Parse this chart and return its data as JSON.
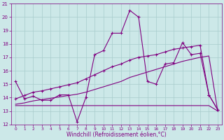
{
  "xlabel": "Windchill (Refroidissement éolien,°C)",
  "x": [
    0,
    1,
    2,
    3,
    4,
    5,
    6,
    7,
    8,
    9,
    10,
    11,
    12,
    13,
    14,
    15,
    16,
    17,
    18,
    19,
    20,
    21,
    22,
    23
  ],
  "line_main": [
    15.2,
    13.9,
    14.1,
    13.8,
    13.8,
    14.2,
    14.2,
    12.2,
    14.0,
    17.2,
    17.5,
    18.8,
    18.8,
    20.5,
    20.0,
    15.2,
    15.0,
    16.5,
    16.6,
    18.1,
    17.2,
    17.3,
    14.2,
    13.1
  ],
  "line_trend_upper": [
    13.9,
    14.15,
    14.4,
    14.5,
    14.65,
    14.8,
    14.95,
    15.1,
    15.4,
    15.7,
    16.0,
    16.3,
    16.5,
    16.8,
    17.0,
    17.1,
    17.2,
    17.4,
    17.6,
    17.7,
    17.8,
    17.9,
    14.2,
    13.1
  ],
  "line_trend_lower": [
    13.5,
    13.6,
    13.75,
    13.85,
    13.95,
    14.05,
    14.15,
    14.25,
    14.4,
    14.6,
    14.8,
    15.0,
    15.2,
    15.5,
    15.7,
    15.9,
    16.1,
    16.3,
    16.5,
    16.7,
    16.85,
    17.0,
    17.1,
    13.0
  ],
  "line_flat": [
    13.4,
    13.4,
    13.4,
    13.4,
    13.4,
    13.4,
    13.4,
    13.4,
    13.4,
    13.4,
    13.4,
    13.4,
    13.4,
    13.4,
    13.4,
    13.4,
    13.4,
    13.4,
    13.4,
    13.4,
    13.4,
    13.4,
    13.4,
    13.0
  ],
  "line_color": "#800080",
  "bg_color": "#cce8e8",
  "grid_color": "#a8cccc",
  "ylim": [
    12,
    21
  ],
  "yticks": [
    12,
    13,
    14,
    15,
    16,
    17,
    18,
    19,
    20,
    21
  ],
  "xlim": [
    -0.5,
    23.5
  ],
  "xticks": [
    0,
    1,
    2,
    3,
    4,
    5,
    6,
    7,
    8,
    9,
    10,
    11,
    12,
    13,
    14,
    15,
    16,
    17,
    18,
    19,
    20,
    21,
    22,
    23
  ],
  "tick_fontsize": 4.5,
  "xlabel_fontsize": 5.5
}
